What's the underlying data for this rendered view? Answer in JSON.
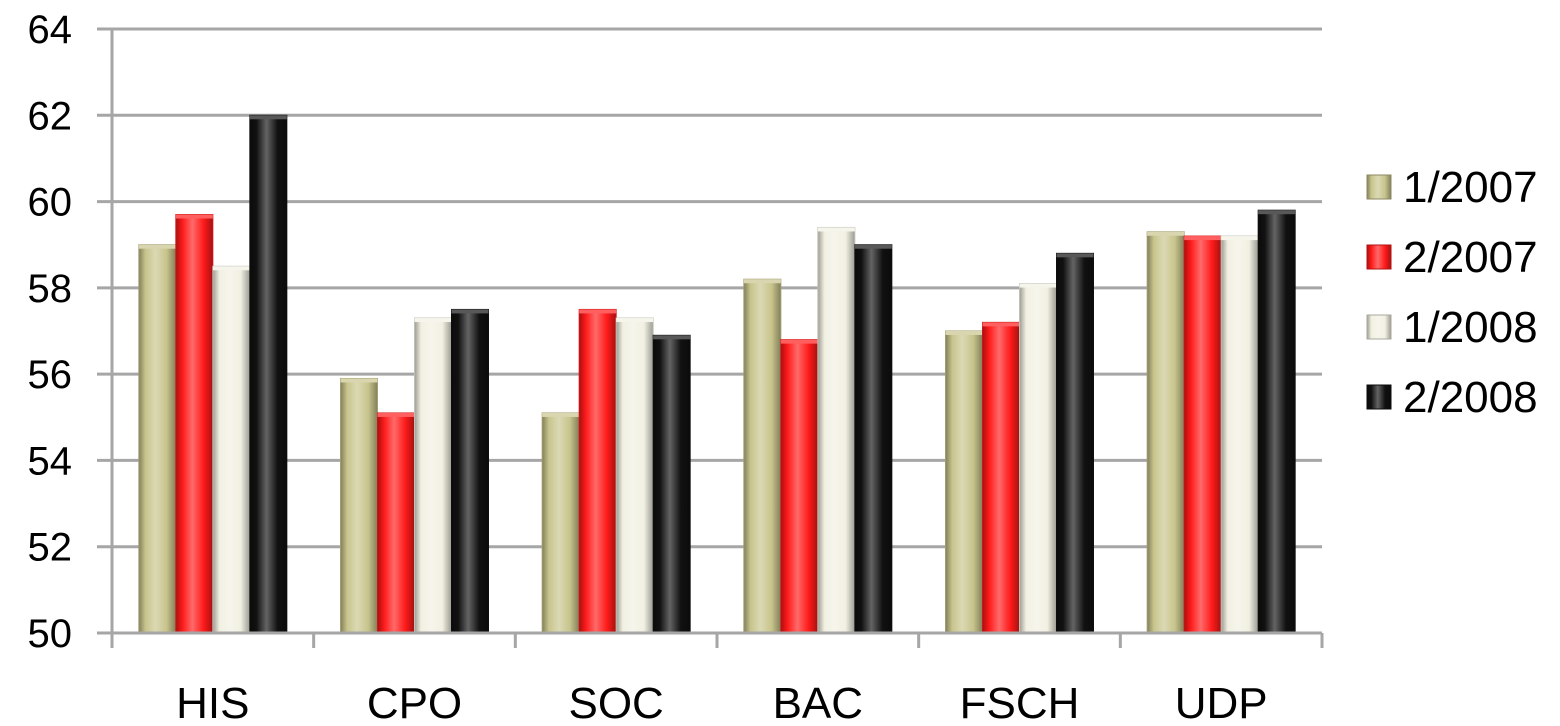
{
  "chart_data": {
    "type": "bar",
    "categories": [
      "HIS",
      "CPO",
      "SOC",
      "BAC",
      "FSCH",
      "UDP"
    ],
    "series": [
      {
        "name": "1/2007",
        "color": "#c8c48c",
        "values": [
          59.0,
          55.9,
          55.1,
          58.2,
          57.0,
          59.3
        ]
      },
      {
        "name": "2/2007",
        "color": "#ff1a1a",
        "values": [
          59.7,
          55.1,
          57.5,
          56.8,
          57.2,
          59.2
        ]
      },
      {
        "name": "1/2008",
        "color": "#f1f0e2",
        "values": [
          58.5,
          57.3,
          57.3,
          59.4,
          58.1,
          59.2
        ]
      },
      {
        "name": "2/2008",
        "color": "#111111",
        "values": [
          62.0,
          57.5,
          56.9,
          59.0,
          58.8,
          59.8
        ]
      }
    ],
    "ylim": [
      50,
      64
    ],
    "yticks": [
      "50",
      "52",
      "54",
      "56",
      "58",
      "60",
      "62",
      "64"
    ],
    "grid": true,
    "legend_position": "right",
    "title": "",
    "xlabel": "",
    "ylabel": ""
  }
}
